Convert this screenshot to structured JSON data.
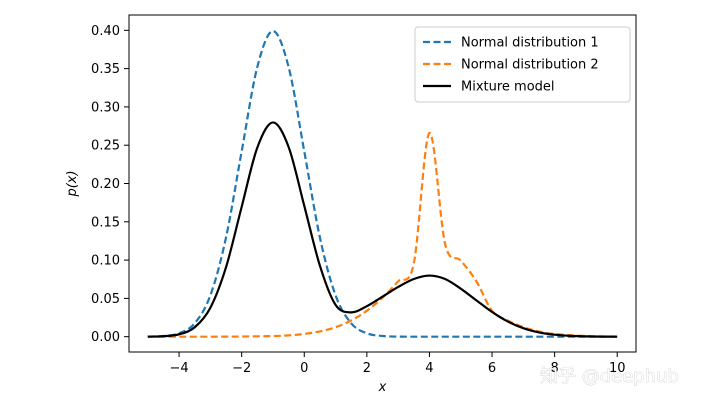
{
  "chart_data": {
    "type": "line",
    "xlabel": "x",
    "ylabel": "p(x)",
    "xlim": [
      -5.6,
      10.6
    ],
    "ylim": [
      -0.02,
      0.42
    ],
    "xticks": [
      -4,
      -2,
      0,
      2,
      4,
      6,
      8,
      10
    ],
    "xtick_labels": [
      "−4",
      "−2",
      "0",
      "2",
      "4",
      "6",
      "8",
      "10"
    ],
    "yticks": [
      0.0,
      0.05,
      0.1,
      0.15,
      0.2,
      0.25,
      0.3,
      0.35,
      0.4
    ],
    "ytick_labels": [
      "0.00",
      "0.05",
      "0.10",
      "0.15",
      "0.20",
      "0.25",
      "0.30",
      "0.35",
      "0.40"
    ],
    "grid": false,
    "legend_position": "top-right",
    "series": [
      {
        "name": "Normal distribution 1",
        "color": "#1f77b4",
        "style": "dashed",
        "x": [
          -5,
          -4.5,
          -4,
          -3.5,
          -3,
          -2.5,
          -2,
          -1.5,
          -1,
          -0.5,
          0,
          0.5,
          1,
          1.5,
          2,
          2.5,
          3,
          3.5,
          4,
          5,
          6,
          7,
          8,
          9,
          10
        ],
        "y": [
          0.0001,
          0.0009,
          0.0044,
          0.0175,
          0.054,
          0.1295,
          0.242,
          0.3521,
          0.399,
          0.3521,
          0.242,
          0.1295,
          0.054,
          0.0175,
          0.0044,
          0.0009,
          0.0001,
          0.0,
          0.0,
          0.0,
          0.0,
          0.0,
          0.0,
          0.0,
          0.0
        ]
      },
      {
        "name": "Normal distribution 2",
        "color": "#ff7f0e",
        "style": "dashed",
        "x": [
          -5,
          -4,
          -3,
          -2,
          -1,
          -0.5,
          0,
          0.5,
          1,
          1.5,
          2,
          2.5,
          3,
          3.5,
          4,
          4.5,
          5,
          5.5,
          6,
          6.5,
          7,
          7.5,
          8,
          9,
          10
        ],
        "y": [
          0.0,
          0.0,
          0.0,
          0.0002,
          0.0008,
          0.0017,
          0.0036,
          0.0068,
          0.0124,
          0.0211,
          0.0338,
          0.0509,
          0.0722,
          0.0957,
          0.266,
          0.1211,
          0.0994,
          0.0722,
          0.0338,
          0.0211,
          0.0124,
          0.0068,
          0.0036,
          0.0008,
          0.0002
        ]
      },
      {
        "name": "Mixture model",
        "color": "#000000",
        "style": "solid",
        "x": [
          -5,
          -4.5,
          -4,
          -3.5,
          -3,
          -2.5,
          -2,
          -1.5,
          -1,
          -0.5,
          0,
          0.5,
          1,
          1.5,
          2,
          2.5,
          3,
          3.5,
          4,
          4.5,
          5,
          5.5,
          6,
          6.5,
          7,
          7.5,
          8,
          8.5,
          9,
          9.5,
          10
        ],
        "y": [
          0.0001,
          0.0006,
          0.0031,
          0.0123,
          0.0378,
          0.0907,
          0.1695,
          0.2469,
          0.2797,
          0.2477,
          0.1709,
          0.0927,
          0.0415,
          0.0317,
          0.0398,
          0.0522,
          0.0649,
          0.0753,
          0.0798,
          0.0753,
          0.0627,
          0.0474,
          0.0323,
          0.0199,
          0.0111,
          0.0056,
          0.0026,
          0.0011,
          0.0004,
          0.0001,
          0.0
        ]
      }
    ]
  },
  "watermark": "知乎 @deephub"
}
